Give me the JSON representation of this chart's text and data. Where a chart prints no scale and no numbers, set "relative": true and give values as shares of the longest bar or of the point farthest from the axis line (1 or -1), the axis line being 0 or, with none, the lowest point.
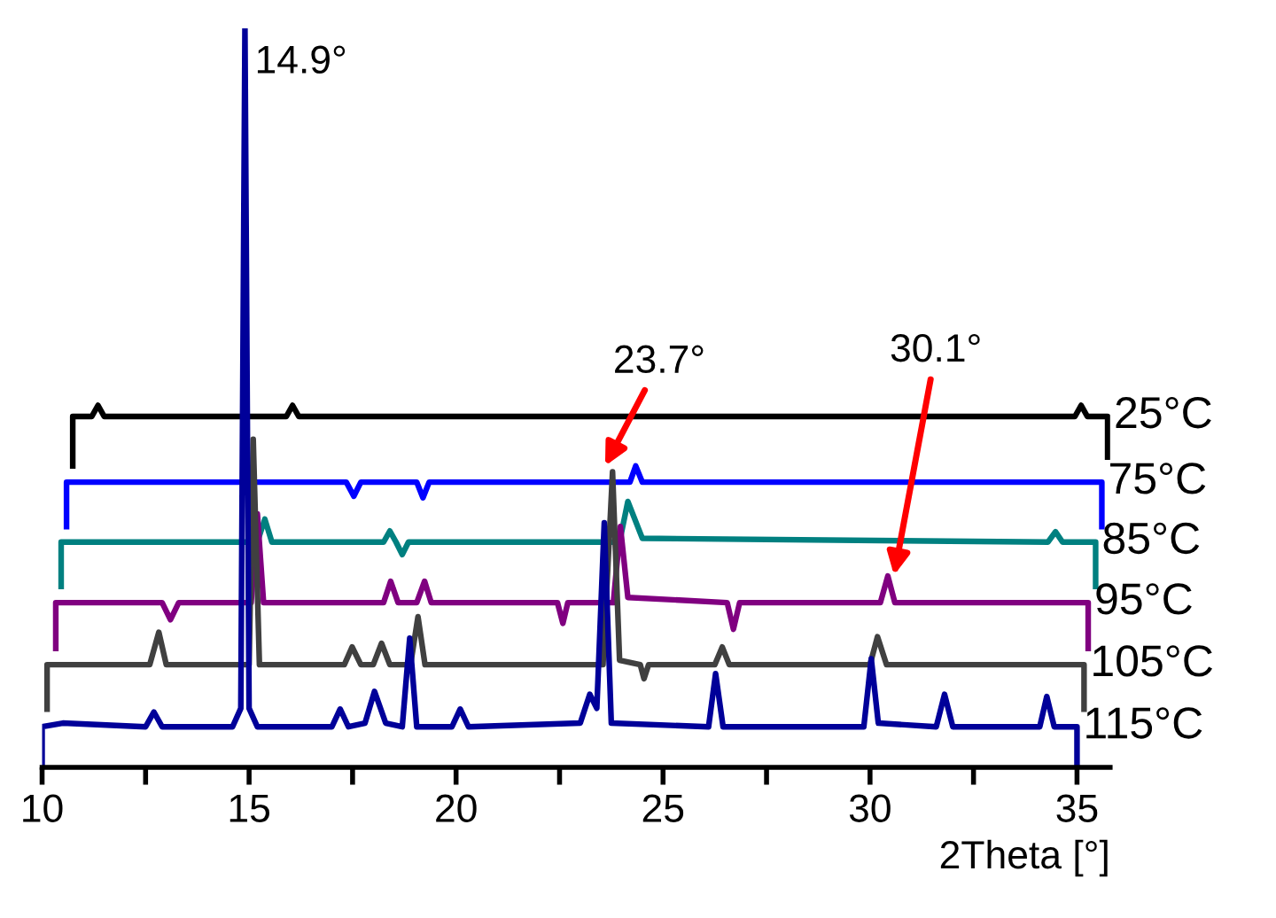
{
  "chart_data": {
    "type": "line",
    "relative": true,
    "xlabel": "2Theta [°]",
    "xlim": [
      10,
      35.8
    ],
    "xticks": [
      10,
      {
        "value": 12.5,
        "label": null
      },
      15,
      {
        "value": 17.5,
        "label": null
      },
      20,
      {
        "value": 22.5,
        "label": null
      },
      25,
      {
        "value": 27.5,
        "label": null
      },
      30,
      {
        "value": 32.5,
        "label": null
      },
      35
    ],
    "tick_labels": "x",
    "grid": false,
    "legend": false,
    "annotations": [
      {
        "text": "14.9°",
        "x": 14.9,
        "y": 1.0
      },
      {
        "text": "23.7°",
        "x": 23.6,
        "y": 0.408
      },
      {
        "text": "30.1°",
        "x": 30.58,
        "y": 0.26
      }
    ],
    "series": [
      {
        "name": "25°C",
        "color": "#000000",
        "x": [
          10.74,
          10.74,
          11.2,
          11.35,
          11.5,
          15.9,
          16.05,
          16.2,
          34.95,
          35.1,
          35.25,
          35.74,
          35.74
        ],
        "values": [
          0.408,
          0.475,
          0.475,
          0.49,
          0.475,
          0.475,
          0.49,
          0.475,
          0.475,
          0.49,
          0.475,
          0.475,
          0.42
        ]
      },
      {
        "name": "75°C",
        "color": "#0000ff",
        "x": [
          10.59,
          10.59,
          17.35,
          17.53,
          17.7,
          19.05,
          19.2,
          19.35,
          24.2,
          24.34,
          24.5,
          35.6,
          35.6
        ],
        "values": [
          0.326,
          0.386,
          0.386,
          0.367,
          0.386,
          0.386,
          0.365,
          0.386,
          0.386,
          0.408,
          0.386,
          0.386,
          0.326
        ]
      },
      {
        "name": "85°C",
        "color": "#008080",
        "x": [
          10.46,
          10.46,
          15.2,
          15.38,
          15.55,
          18.25,
          18.4,
          18.55,
          18.7,
          18.85,
          23.95,
          24.15,
          24.5,
          34.3,
          34.48,
          34.65,
          35.45,
          35.45
        ],
        "values": [
          0.245,
          0.305,
          0.305,
          0.336,
          0.305,
          0.305,
          0.32,
          0.305,
          0.288,
          0.305,
          0.305,
          0.36,
          0.31,
          0.305,
          0.319,
          0.305,
          0.305,
          0.245
        ]
      },
      {
        "name": "95°C",
        "color": "#800080",
        "x": [
          10.33,
          10.33,
          12.9,
          13.1,
          13.3,
          15.05,
          15.2,
          15.35,
          18.25,
          18.42,
          18.6,
          19.05,
          19.24,
          19.4,
          22.45,
          22.58,
          22.7,
          23.8,
          23.97,
          24.15,
          26.55,
          26.7,
          26.85,
          30.25,
          30.43,
          30.6,
          35.27,
          35.27
        ],
        "values": [
          0.161,
          0.223,
          0.223,
          0.2,
          0.223,
          0.223,
          0.343,
          0.223,
          0.223,
          0.252,
          0.223,
          0.223,
          0.252,
          0.223,
          0.223,
          0.195,
          0.223,
          0.223,
          0.326,
          0.23,
          0.223,
          0.187,
          0.223,
          0.223,
          0.259,
          0.223,
          0.223,
          0.161
        ]
      },
      {
        "name": "105°C",
        "color": "#404040",
        "x": [
          10.12,
          10.12,
          12.6,
          12.82,
          13.0,
          15.0,
          15.1,
          15.25,
          17.3,
          17.49,
          17.7,
          18.0,
          18.2,
          18.4,
          18.9,
          19.08,
          19.25,
          23.55,
          23.78,
          23.95,
          24.45,
          24.54,
          24.65,
          26.25,
          26.43,
          26.6,
          30.0,
          30.18,
          30.4,
          35.17,
          35.17
        ],
        "values": [
          0.079,
          0.139,
          0.139,
          0.183,
          0.139,
          0.139,
          0.444,
          0.139,
          0.139,
          0.163,
          0.139,
          0.139,
          0.168,
          0.139,
          0.139,
          0.204,
          0.139,
          0.139,
          0.4,
          0.145,
          0.139,
          0.12,
          0.139,
          0.139,
          0.163,
          0.139,
          0.139,
          0.177,
          0.139,
          0.139,
          0.079
        ]
      },
      {
        "name": "115°C",
        "color": "#000099",
        "x": [
          10.0,
          10.0,
          10.5,
          12.5,
          12.7,
          12.9,
          14.6,
          14.8,
          14.9,
          15.0,
          15.2,
          17.0,
          17.2,
          17.4,
          17.8,
          18.03,
          18.3,
          18.7,
          18.88,
          19.05,
          19.9,
          20.1,
          20.3,
          23.0,
          23.23,
          23.4,
          23.58,
          23.75,
          26.1,
          26.27,
          26.45,
          29.85,
          30.03,
          30.2,
          31.6,
          31.8,
          32.0,
          34.1,
          34.27,
          34.45,
          35.0,
          35.0
        ],
        "values": [
          0,
          0.055,
          0.06,
          0.055,
          0.075,
          0.055,
          0.055,
          0.08,
          1.0,
          0.08,
          0.055,
          0.055,
          0.079,
          0.055,
          0.06,
          0.103,
          0.06,
          0.055,
          0.175,
          0.055,
          0.055,
          0.079,
          0.055,
          0.06,
          0.099,
          0.08,
          0.331,
          0.06,
          0.055,
          0.127,
          0.055,
          0.055,
          0.147,
          0.06,
          0.055,
          0.099,
          0.055,
          0.055,
          0.096,
          0.055,
          0.055,
          0
        ]
      }
    ]
  }
}
